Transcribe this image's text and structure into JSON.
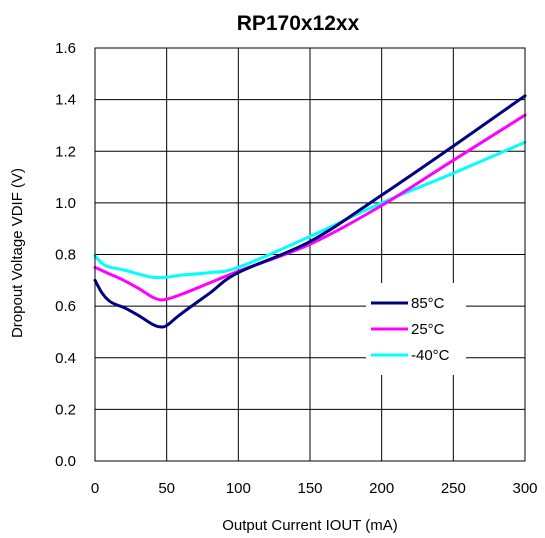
{
  "chart_data": {
    "type": "line",
    "title": "RP170x12xx",
    "xlabel": "Output Current IOUT (mA)",
    "ylabel": "Dropout Voltage VDIF (V)",
    "xlim": [
      0,
      300
    ],
    "ylim": [
      0,
      1.6
    ],
    "x_ticks": [
      "0",
      "50",
      "100",
      "150",
      "200",
      "250",
      "300"
    ],
    "y_ticks": [
      "0.0",
      "0.2",
      "0.4",
      "0.6",
      "0.8",
      "1.0",
      "1.2",
      "1.4",
      "1.6"
    ],
    "grid": true,
    "legend_position": "lower-right",
    "series": [
      {
        "name": "85°C",
        "color": "#000080",
        "x": [
          0,
          5,
          10,
          15,
          20,
          30,
          40,
          45,
          50,
          60,
          80,
          100,
          150,
          200,
          250,
          300
        ],
        "y": [
          0.7,
          0.65,
          0.62,
          0.605,
          0.595,
          0.565,
          0.53,
          0.52,
          0.525,
          0.57,
          0.65,
          0.73,
          0.85,
          1.03,
          1.22,
          1.415
        ]
      },
      {
        "name": "25°C",
        "color": "#ff00ff",
        "x": [
          0,
          10,
          20,
          30,
          40,
          45,
          50,
          60,
          80,
          100,
          150,
          200,
          250,
          300
        ],
        "y": [
          0.75,
          0.725,
          0.7,
          0.67,
          0.635,
          0.625,
          0.627,
          0.645,
          0.69,
          0.735,
          0.84,
          0.99,
          1.165,
          1.34
        ]
      },
      {
        "name": "-40°C",
        "color": "#00ffff",
        "x": [
          0,
          5,
          10,
          20,
          30,
          40,
          50,
          60,
          80,
          100,
          150,
          200,
          250,
          300
        ],
        "y": [
          0.795,
          0.765,
          0.752,
          0.74,
          0.725,
          0.712,
          0.712,
          0.72,
          0.73,
          0.75,
          0.87,
          1.0,
          1.115,
          1.235
        ]
      }
    ]
  }
}
